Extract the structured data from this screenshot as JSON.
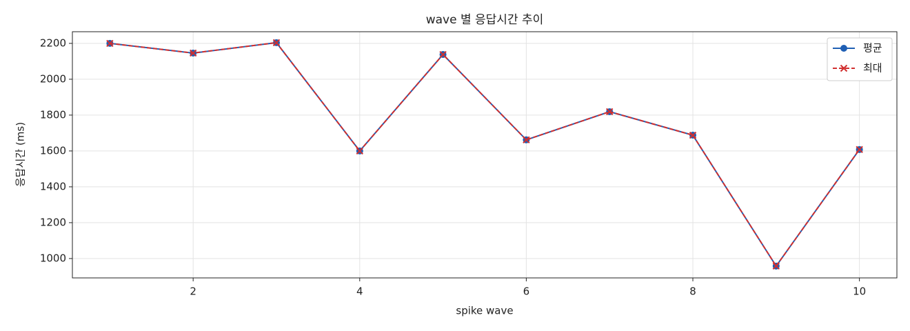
{
  "chart_data": {
    "type": "line",
    "title": "wave 별 응답시간 추이",
    "x_label": "spike wave",
    "y_label": "응답시간 (ms)",
    "x": [
      1,
      2,
      3,
      4,
      5,
      6,
      7,
      8,
      9,
      10
    ],
    "series": [
      {
        "name": "평균",
        "color": "#1f5fb4",
        "marker": "circle",
        "dash": false,
        "values": [
          2200,
          2146,
          2204,
          1600,
          2138,
          1662,
          1819,
          1688,
          958,
          1608
        ]
      },
      {
        "name": "최대",
        "color": "#d12f2f",
        "marker": "x",
        "dash": true,
        "values": [
          2200,
          2146,
          2204,
          1600,
          2138,
          1662,
          1819,
          1688,
          958,
          1608
        ]
      }
    ],
    "xlim": [
      0.55,
      10.45
    ],
    "ylim": [
      892,
      2265
    ],
    "xticks": [
      2,
      4,
      6,
      8,
      10
    ],
    "yticks": [
      1000,
      1200,
      1400,
      1600,
      1800,
      2000,
      2200
    ],
    "grid": true,
    "legend": "upper right"
  }
}
